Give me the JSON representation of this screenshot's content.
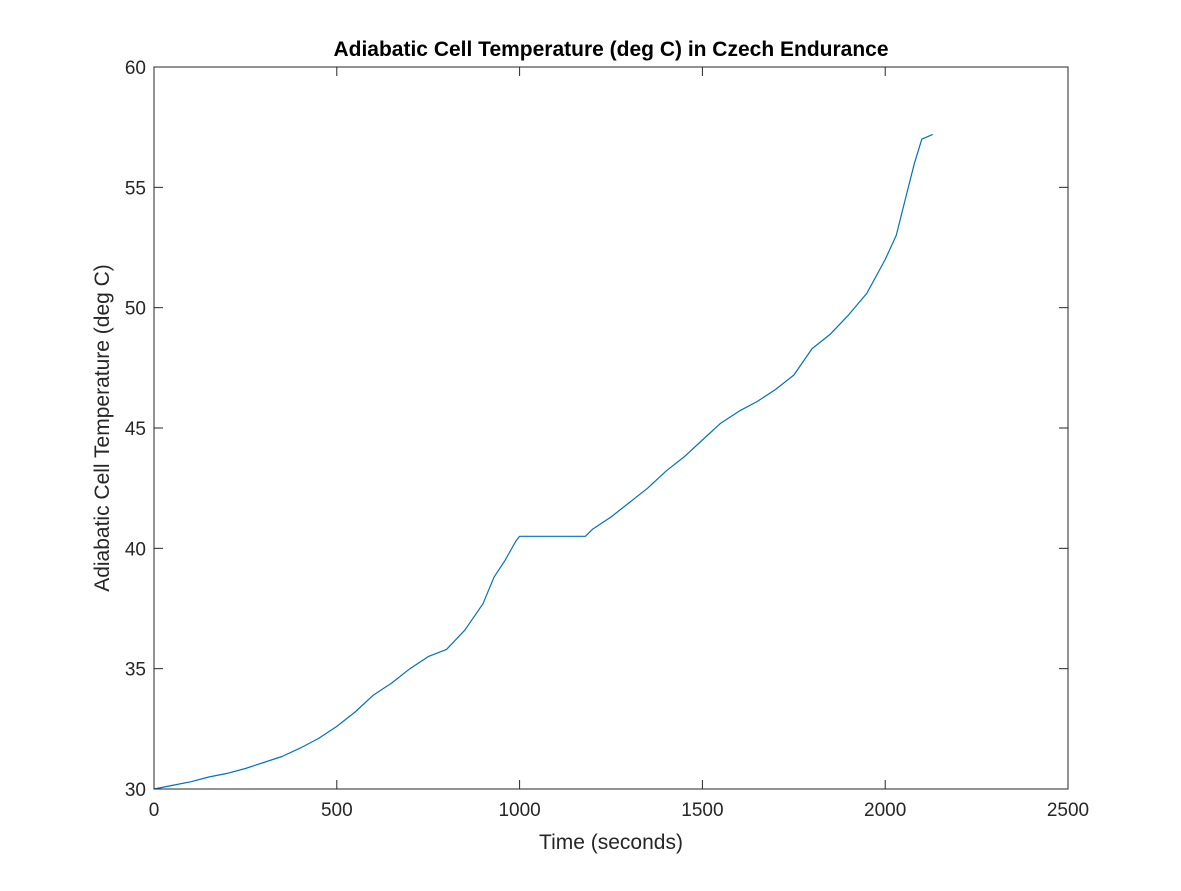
{
  "chart_data": {
    "type": "line",
    "title": "Adiabatic Cell Temperature (deg C) in Czech Endurance",
    "xlabel": "Time (seconds)",
    "ylabel": "Adiabatic Cell Temperature (deg C)",
    "xlim": [
      0,
      2500
    ],
    "ylim": [
      30,
      60
    ],
    "xticks": [
      0,
      500,
      1000,
      1500,
      2000,
      2500
    ],
    "yticks": [
      30,
      35,
      40,
      45,
      50,
      55,
      60
    ],
    "xtick_labels": [
      "0",
      "500",
      "1000",
      "1500",
      "2000",
      "2500"
    ],
    "ytick_labels": [
      "30",
      "35",
      "40",
      "45",
      "50",
      "55",
      "60"
    ],
    "grid": false,
    "legend": "none",
    "line_color": "#0072BD",
    "series": [
      {
        "x": [
          0,
          50,
          100,
          150,
          200,
          250,
          300,
          350,
          400,
          450,
          500,
          550,
          600,
          650,
          700,
          750,
          800,
          850,
          900,
          930,
          960,
          990,
          1000,
          1050,
          1100,
          1150,
          1180,
          1200,
          1250,
          1300,
          1350,
          1400,
          1450,
          1500,
          1550,
          1600,
          1650,
          1700,
          1750,
          1800,
          1850,
          1900,
          1950,
          2000,
          2030,
          2060,
          2080,
          2100,
          2130
        ],
        "y": [
          30.0,
          30.15,
          30.3,
          30.5,
          30.65,
          30.85,
          31.1,
          31.35,
          31.7,
          32.1,
          32.6,
          33.2,
          33.9,
          34.4,
          35.0,
          35.5,
          35.8,
          36.6,
          37.7,
          38.8,
          39.5,
          40.3,
          40.5,
          40.5,
          40.5,
          40.5,
          40.5,
          40.8,
          41.3,
          41.9,
          42.5,
          43.2,
          43.8,
          44.5,
          45.2,
          45.7,
          46.1,
          46.6,
          47.2,
          48.3,
          48.9,
          49.7,
          50.6,
          52.0,
          53.0,
          54.8,
          56.0,
          57.0,
          57.2
        ]
      }
    ]
  }
}
